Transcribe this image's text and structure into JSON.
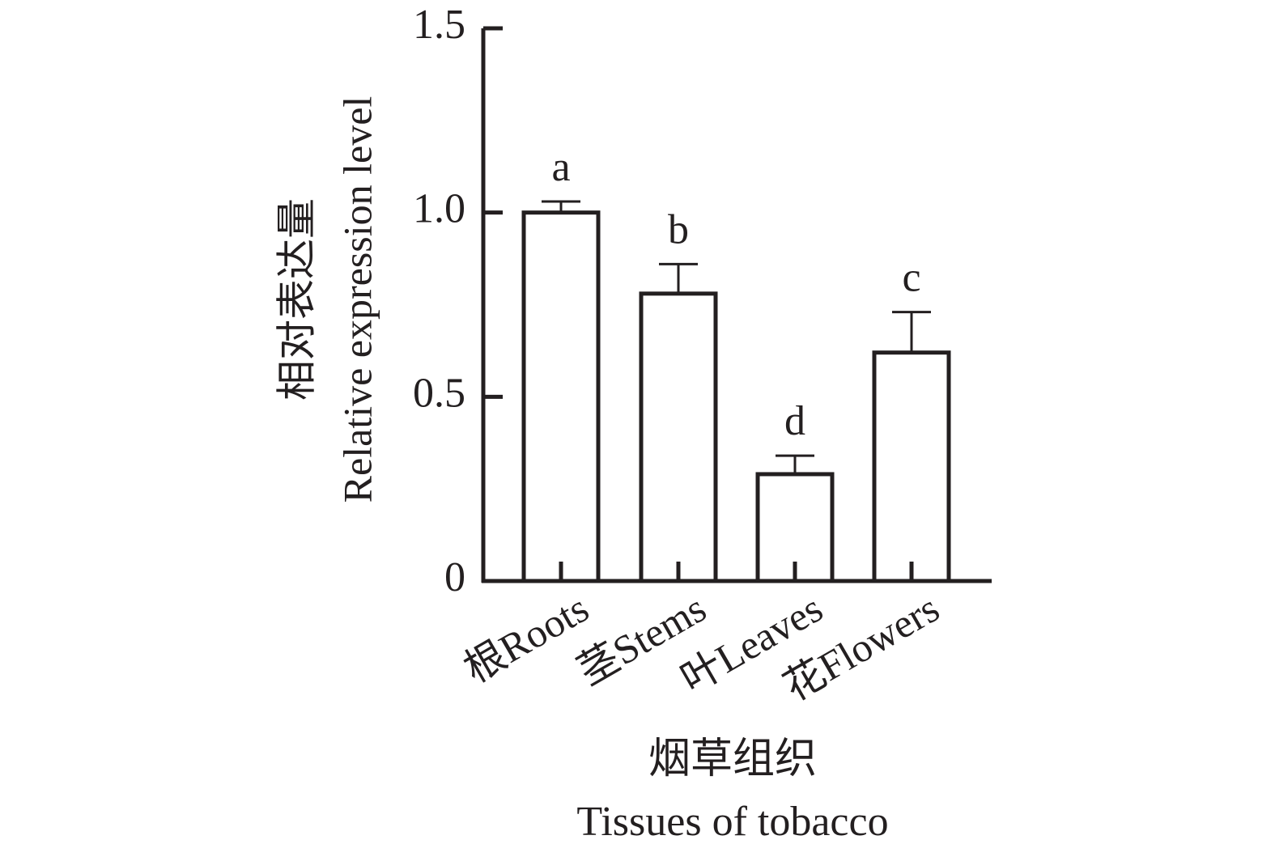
{
  "chart_data": {
    "type": "bar",
    "y_label": [
      "相对表达量",
      "Relative expression level"
    ],
    "x_label": [
      "烟草组织",
      "Tissues of tobacco"
    ],
    "categories": [
      "根Roots",
      "茎Stems",
      "叶Leaves",
      "花Flowers"
    ],
    "values": [
      1.0,
      0.78,
      0.29,
      0.62
    ],
    "errors": [
      0.03,
      0.08,
      0.05,
      0.11
    ],
    "significance": [
      "a",
      "b",
      "d",
      "c"
    ],
    "color": "#ffffff",
    "ylim": [
      0,
      1.5
    ],
    "yticks": [
      0,
      0.5,
      {
        "value": 1,
        "label": "1.0"
      },
      1.5
    ]
  }
}
